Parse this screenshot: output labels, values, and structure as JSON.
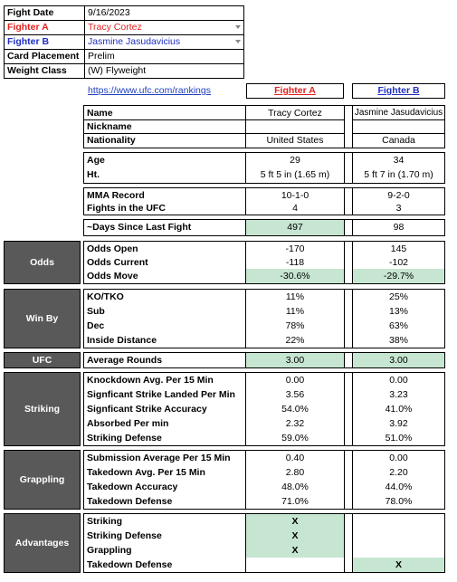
{
  "info": {
    "fight_date_label": "Fight Date",
    "fight_date": "9/16/2023",
    "fighter_a_label": "Fighter A",
    "fighter_a": "Tracy Cortez",
    "fighter_b_label": "Fighter B",
    "fighter_b": "Jasmine Jasudavicius",
    "card_label": "Card Placement",
    "card": "Prelim",
    "weight_label": "Weight Class",
    "weight": "(W) Flyweight"
  },
  "link": "https://www.ufc.com/rankings",
  "col_a_header": "Fighter A",
  "col_b_header": "Fighter B",
  "profile": {
    "labels": [
      "Name",
      "Nickname",
      "Nationality"
    ],
    "a": [
      "Tracy Cortez",
      "",
      "United States"
    ],
    "b": [
      "Jasmine Jasudavicius",
      "",
      "Canada"
    ]
  },
  "physical": {
    "labels": [
      "Age",
      "Ht."
    ],
    "a": [
      "29",
      "5 ft 5 in (1.65 m)"
    ],
    "b": [
      "34",
      "5 ft 7 in (1.70 m)"
    ]
  },
  "record": {
    "labels": [
      "MMA Record",
      "Fights in the UFC"
    ],
    "a": [
      "10-1-0",
      "4"
    ],
    "b": [
      "9-2-0",
      "3"
    ]
  },
  "days": {
    "label": "~Days Since Last Fight",
    "a": "497",
    "b": "98"
  },
  "odds": {
    "section": "Odds",
    "labels": [
      "Odds Open",
      "Odds Current",
      "Odds Move"
    ],
    "a": [
      "-170",
      "-118",
      "-30.6%"
    ],
    "b": [
      "145",
      "-102",
      "-29.7%"
    ]
  },
  "winby": {
    "section": "Win By",
    "labels": [
      "KO/TKO",
      "Sub",
      "Dec",
      "Inside Distance"
    ],
    "a": [
      "11%",
      "11%",
      "78%",
      "22%"
    ],
    "b": [
      "25%",
      "13%",
      "63%",
      "38%"
    ]
  },
  "ufc": {
    "section": "UFC",
    "label": "Average Rounds",
    "a": "3.00",
    "b": "3.00"
  },
  "striking": {
    "section": "Striking",
    "labels": [
      "Knockdown Avg. Per 15 Min",
      "Signficant Strike Landed Per Min",
      "Signficant Strike Accuracy",
      "Absorbed Per min",
      "Striking Defense"
    ],
    "a": [
      "0.00",
      "3.56",
      "54.0%",
      "2.32",
      "59.0%"
    ],
    "b": [
      "0.00",
      "3.23",
      "41.0%",
      "3.92",
      "51.0%"
    ]
  },
  "grappling": {
    "section": "Grappling",
    "labels": [
      "Submission Average  Per 15 Min",
      "Takedown Avg. Per 15 Min",
      "Takedown Accuracy",
      "Takedown Defense"
    ],
    "a": [
      "0.40",
      "2.80",
      "48.0%",
      "71.0%"
    ],
    "b": [
      "0.00",
      "2.20",
      "44.0%",
      "78.0%"
    ]
  },
  "advantages": {
    "section": "Advantages",
    "labels": [
      "Striking",
      "Striking Defense",
      "Grappling",
      "Takedown Defense"
    ],
    "a": [
      "X",
      "X",
      "X",
      ""
    ],
    "b": [
      "",
      "",
      "",
      "X"
    ]
  },
  "colors": {
    "highlight": "#c6e6d1",
    "section_bg": "#595959",
    "fighter_a": "#e0221f",
    "fighter_b": "#1f2fbf"
  }
}
